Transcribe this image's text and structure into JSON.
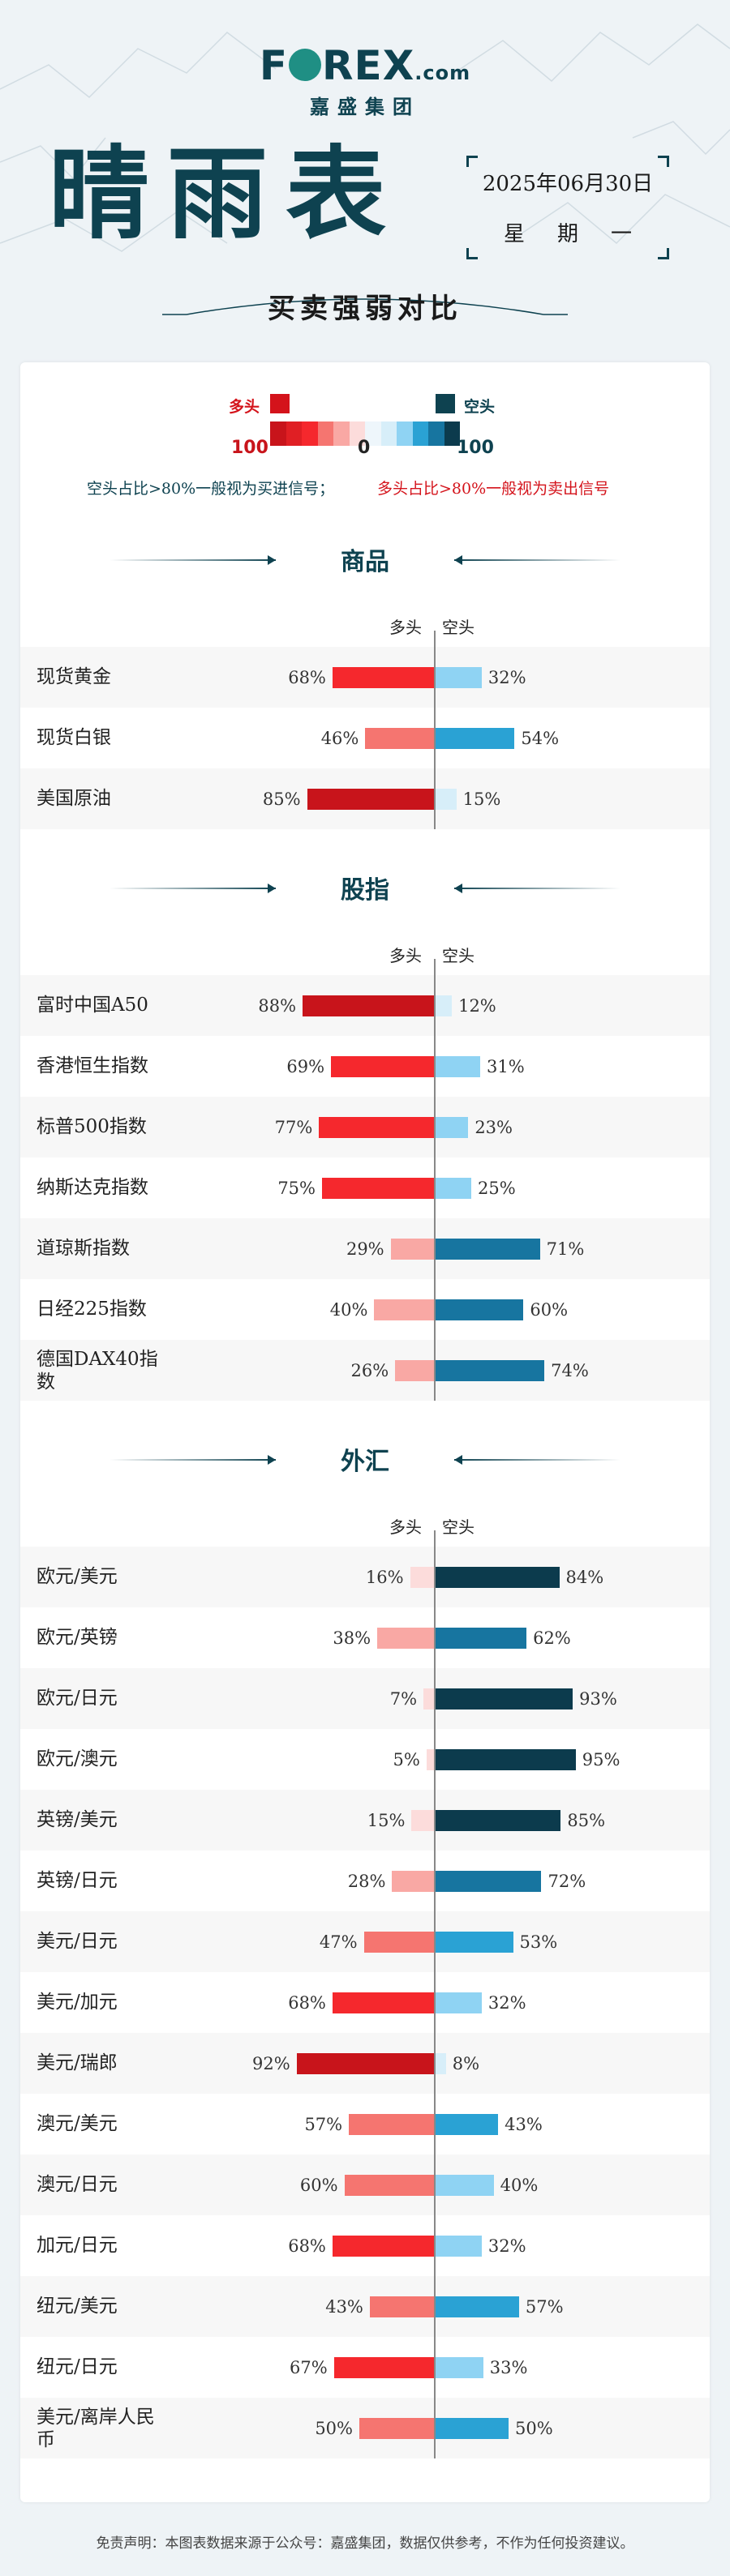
{
  "logo": {
    "text": "FOREX",
    "domain": ".com",
    "sub": "嘉盛集团"
  },
  "header": {
    "title": "晴雨表",
    "date": "2025年06月30日",
    "weekday": "星期一",
    "subtitle": "买卖强弱对比"
  },
  "legend": {
    "bull_label": "多头",
    "bear_label": "空头",
    "bull_max": "100",
    "zero": "0",
    "bear_max": "100",
    "bear_note": "空头占比>80%一般视为买进信号；",
    "bull_note": "多头占比>80%一般视为卖出信号"
  },
  "columns": {
    "bull": "多头",
    "bear": "空头"
  },
  "colors": {
    "bull_strong": "#c8141b",
    "bull_mid": "#f5282d",
    "bull_light": "#f57570",
    "bull_pale": "#f9a8a4",
    "bull_faint": "#fcdcdb",
    "bear_strong": "#0c3b4d",
    "bear_mid": "#1775a0",
    "bear_light": "#2aa2d4",
    "bear_pale": "#8fd3f3",
    "bear_faint": "#d7eef9"
  },
  "sections": [
    {
      "title": "商品",
      "rows": [
        {
          "name": "现货黄金",
          "bull": 68,
          "bear": 32
        },
        {
          "name": "现货白银",
          "bull": 46,
          "bear": 54
        },
        {
          "name": "美国原油",
          "bull": 85,
          "bear": 15
        }
      ]
    },
    {
      "title": "股指",
      "rows": [
        {
          "name": "富时中国A50",
          "bull": 88,
          "bear": 12
        },
        {
          "name": "香港恒生指数",
          "bull": 69,
          "bear": 31
        },
        {
          "name": "标普500指数",
          "bull": 77,
          "bear": 23
        },
        {
          "name": "纳斯达克指数",
          "bull": 75,
          "bear": 25
        },
        {
          "name": "道琼斯指数",
          "bull": 29,
          "bear": 71
        },
        {
          "name": "日经225指数",
          "bull": 40,
          "bear": 60
        },
        {
          "name": "德国DAX40指数",
          "bull": 26,
          "bear": 74
        }
      ]
    },
    {
      "title": "外汇",
      "rows": [
        {
          "name": "欧元/美元",
          "bull": 16,
          "bear": 84
        },
        {
          "name": "欧元/英镑",
          "bull": 38,
          "bear": 62
        },
        {
          "name": "欧元/日元",
          "bull": 7,
          "bear": 93
        },
        {
          "name": "欧元/澳元",
          "bull": 5,
          "bear": 95
        },
        {
          "name": "英镑/美元",
          "bull": 15,
          "bear": 85
        },
        {
          "name": "英镑/日元",
          "bull": 28,
          "bear": 72
        },
        {
          "name": "美元/日元",
          "bull": 47,
          "bear": 53
        },
        {
          "name": "美元/加元",
          "bull": 68,
          "bear": 32
        },
        {
          "name": "美元/瑞郎",
          "bull": 92,
          "bear": 8
        },
        {
          "name": "澳元/美元",
          "bull": 57,
          "bear": 43
        },
        {
          "name": "澳元/日元",
          "bull": 60,
          "bear": 40
        },
        {
          "name": "加元/日元",
          "bull": 68,
          "bear": 32
        },
        {
          "name": "纽元/美元",
          "bull": 43,
          "bear": 57
        },
        {
          "name": "纽元/日元",
          "bull": 67,
          "bear": 33
        },
        {
          "name": "美元/离岸人民币",
          "bull": 50,
          "bear": 50
        }
      ]
    }
  ],
  "footer": "免责声明：本图表数据来源于公众号：嘉盛集团，数据仅供参考，不作为任何投资建议。"
}
